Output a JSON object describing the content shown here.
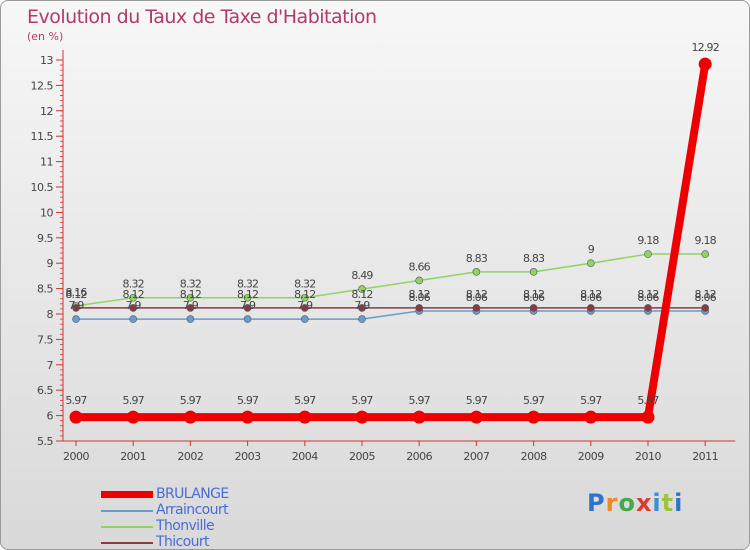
{
  "title": "Evolution du Taux de Taxe d'Habitation",
  "subtitle": "(en %)",
  "logo_text": "Proxiti",
  "chart_data": {
    "type": "line",
    "title": "Evolution du Taux de Taxe d'Habitation",
    "ylabel": "(en %)",
    "xlabel": "",
    "x": [
      "2000",
      "2001",
      "2002",
      "2003",
      "2004",
      "2005",
      "2006",
      "2007",
      "2008",
      "2009",
      "2010",
      "2011"
    ],
    "ylim": [
      5.5,
      13
    ],
    "yticks": [
      "5.5",
      "6",
      "6.5",
      "7",
      "7.5",
      "8",
      "8.5",
      "9",
      "9.5",
      "10",
      "10.5",
      "11",
      "11.5",
      "12",
      "12.5",
      "13"
    ],
    "legend_position": "bottom-left",
    "series": [
      {
        "name": "BRULANGE",
        "color": "#ee0000",
        "values": [
          5.97,
          5.97,
          5.97,
          5.97,
          5.97,
          5.97,
          5.97,
          5.97,
          5.97,
          5.97,
          5.97,
          12.92
        ],
        "labels": [
          "5.97",
          "5.97",
          "5.97",
          "5.97",
          "5.97",
          "5.97",
          "5.97",
          "5.97",
          "5.97",
          "5.97",
          "5.97",
          "12.92"
        ]
      },
      {
        "name": "Arraincourt",
        "color": "#6a9cc9",
        "values": [
          7.9,
          7.9,
          7.9,
          7.9,
          7.9,
          7.9,
          8.06,
          8.06,
          8.06,
          8.06,
          8.06,
          8.06
        ],
        "labels": [
          "7.9",
          "7.9",
          "7.9",
          "7.9",
          "7.9",
          "7.9",
          "8.06",
          "8.06",
          "8.06",
          "8.06",
          "8.06",
          "8.06"
        ]
      },
      {
        "name": "Thonville",
        "color": "#8fd460",
        "values": [
          8.16,
          8.32,
          8.32,
          8.32,
          8.32,
          8.49,
          8.66,
          8.83,
          8.83,
          9,
          9.18,
          9.18
        ],
        "labels": [
          "8.16",
          "8.32",
          "8.32",
          "8.32",
          "8.32",
          "8.49",
          "8.66",
          "8.83",
          "8.83",
          "9",
          "9.18",
          "9.18"
        ]
      },
      {
        "name": "Thicourt",
        "color": "#8a3a40",
        "values": [
          8.12,
          8.12,
          8.12,
          8.12,
          8.12,
          8.12,
          8.12,
          8.12,
          8.12,
          8.12,
          8.12,
          8.12
        ],
        "labels": [
          "8.12",
          "8.12",
          "8.12",
          "8.12",
          "8.12",
          "8.12",
          "8.12",
          "8.12",
          "8.12",
          "8.12",
          "8.12",
          "8.12"
        ]
      }
    ]
  }
}
